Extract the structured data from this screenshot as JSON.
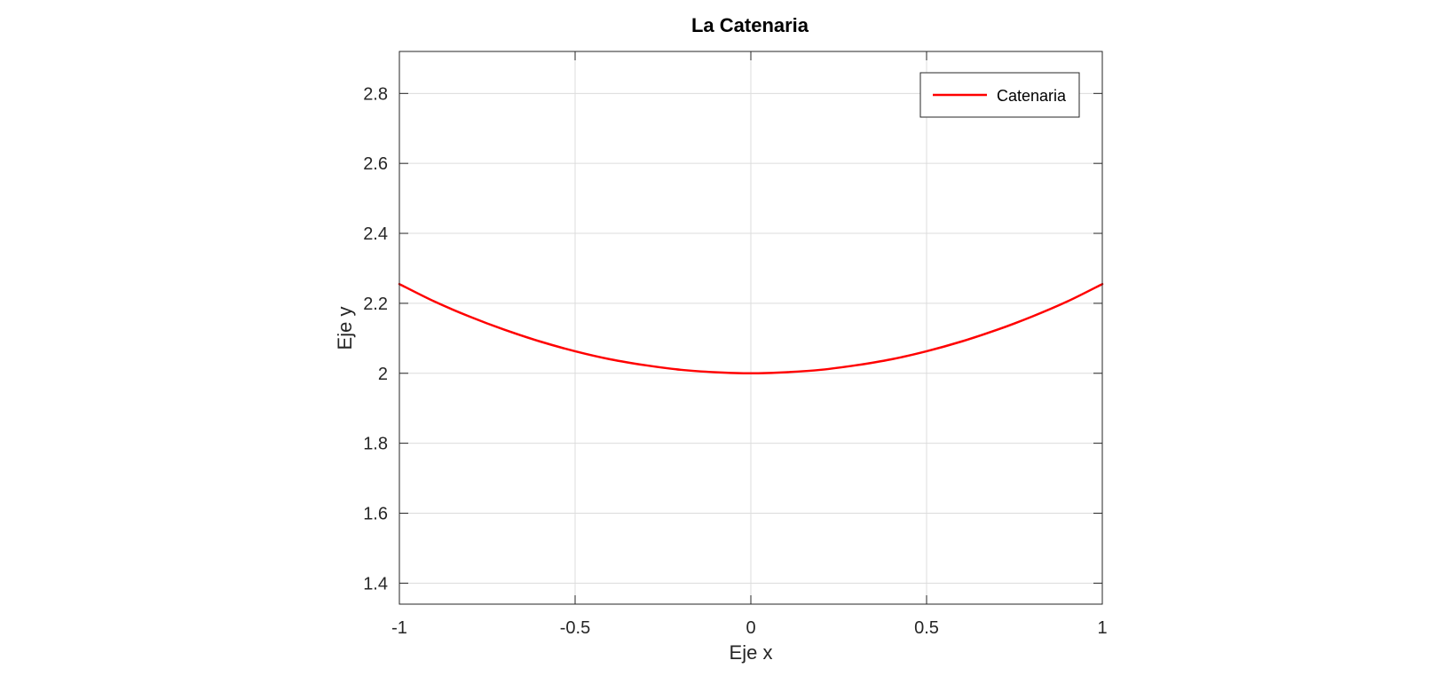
{
  "chart_data": {
    "type": "line",
    "title": "La Catenaria",
    "xlabel": "Eje x",
    "ylabel": "Eje y",
    "xlim": [
      -1,
      1
    ],
    "ylim": [
      1.34,
      2.92
    ],
    "x_ticks": [
      -1,
      -0.5,
      0,
      0.5,
      1
    ],
    "x_tick_labels": [
      "-1",
      "-0.5",
      "0",
      "0.5",
      "1"
    ],
    "y_ticks": [
      1.4,
      1.6,
      1.8,
      2,
      2.2,
      2.4,
      2.6,
      2.8
    ],
    "y_tick_labels": [
      "1.4",
      "1.6",
      "1.8",
      "2",
      "2.2",
      "2.4",
      "2.6",
      "2.8"
    ],
    "grid": true,
    "legend_position": "top-right",
    "series": [
      {
        "name": "Catenaria",
        "color": "#ff0000",
        "x": [
          -1,
          -0.9,
          -0.8,
          -0.7,
          -0.6,
          -0.5,
          -0.4,
          -0.3,
          -0.2,
          -0.1,
          0,
          0.1,
          0.2,
          0.3,
          0.4,
          0.5,
          0.6,
          0.7,
          0.8,
          0.9,
          1
        ],
        "y": [
          2.255,
          2.205,
          2.162,
          2.124,
          2.091,
          2.063,
          2.04,
          2.023,
          2.01,
          2.003,
          2.0,
          2.003,
          2.01,
          2.023,
          2.04,
          2.063,
          2.091,
          2.124,
          2.162,
          2.205,
          2.255
        ]
      }
    ]
  }
}
